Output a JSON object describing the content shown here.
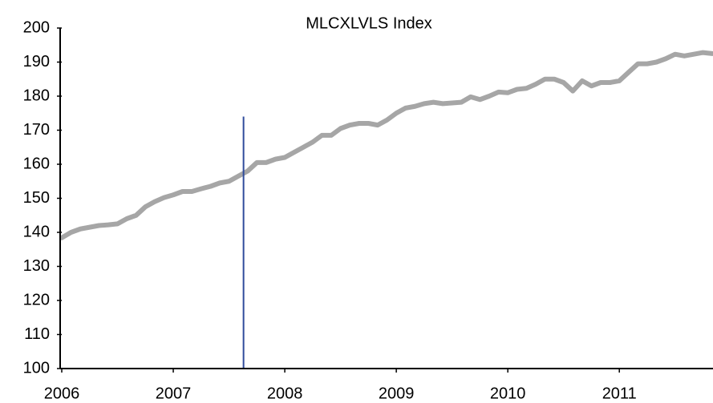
{
  "chart_data": {
    "type": "line",
    "title": "MLCXLVLS Index",
    "x": [
      2006,
      2006.083,
      2006.167,
      2006.25,
      2006.333,
      2006.417,
      2006.5,
      2006.583,
      2006.667,
      2006.75,
      2006.833,
      2006.917,
      2007,
      2007.083,
      2007.167,
      2007.25,
      2007.333,
      2007.417,
      2007.5,
      2007.583,
      2007.667,
      2007.75,
      2007.833,
      2007.917,
      2008,
      2008.083,
      2008.167,
      2008.25,
      2008.333,
      2008.417,
      2008.5,
      2008.583,
      2008.667,
      2008.75,
      2008.833,
      2008.917,
      2009,
      2009.083,
      2009.167,
      2009.25,
      2009.333,
      2009.417,
      2009.5,
      2009.583,
      2009.667,
      2009.75,
      2009.833,
      2009.917,
      2010,
      2010.083,
      2010.167,
      2010.25,
      2010.333,
      2010.417,
      2010.5,
      2010.583,
      2010.667,
      2010.75,
      2010.833,
      2010.917,
      2011,
      2011.083,
      2011.167,
      2011.25,
      2011.333,
      2011.417,
      2011.5,
      2011.583,
      2011.667,
      2011.75,
      2011.833
    ],
    "series": [
      {
        "name": "MLCXLVLS Index",
        "color": "#a6a6a6",
        "values": [
          138.4,
          140,
          141,
          141.5,
          142,
          142.2,
          142.5,
          144,
          145,
          147.5,
          149,
          150.2,
          151,
          152,
          152,
          152.8,
          153.5,
          154.5,
          155,
          156.5,
          158,
          160.5,
          160.5,
          161.5,
          162,
          163.5,
          165,
          166.5,
          168.5,
          168.5,
          170.5,
          171.5,
          172,
          172,
          171.5,
          173,
          175,
          176.5,
          177,
          177.8,
          178.2,
          177.8,
          178,
          178.2,
          179.8,
          179,
          180,
          181.2,
          181,
          182,
          182.3,
          183.5,
          185,
          185,
          184,
          181.5,
          184.5,
          183,
          184,
          184,
          184.5,
          187,
          189.5,
          189.5,
          190,
          191,
          192.3,
          191.8,
          192.3,
          192.8,
          192.5
        ]
      }
    ],
    "marker_line": {
      "x": 2007.63,
      "top": 174,
      "color": "#2f4b9c"
    },
    "xlim": [
      2006,
      2011.84
    ],
    "xticks": [
      2006,
      2007,
      2008,
      2009,
      2010,
      2011
    ],
    "ylim": [
      100,
      200
    ],
    "yticks": [
      100,
      110,
      120,
      130,
      140,
      150,
      160,
      170,
      180,
      190,
      200
    ]
  }
}
